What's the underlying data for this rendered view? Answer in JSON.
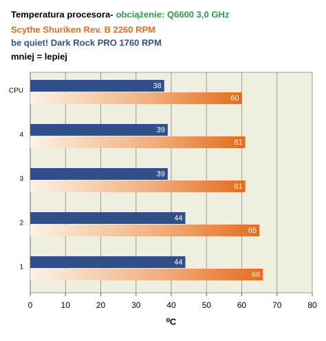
{
  "chart_data": {
    "type": "hbar",
    "title": "Temperatura procesora-",
    "subtitle": "obciążenie: Q6600 3,0 GHz",
    "note": "mniej = lepiej",
    "x_label": "⁰C",
    "categories": [
      "CPU",
      "4",
      "3",
      "2",
      "1"
    ],
    "series": [
      {
        "name": "Scythe Shuriken Rev. B 2260  RPM",
        "color": "#e46c1f",
        "values": [
          60,
          61,
          61,
          65,
          66
        ]
      },
      {
        "name": "be quiet! Dark Rock PRO 1760  RPM",
        "color": "#2f4f88",
        "values": [
          38,
          39,
          39,
          44,
          44
        ]
      }
    ],
    "xlim": [
      0,
      80
    ],
    "xticks": [
      0,
      10,
      20,
      30,
      40,
      50,
      60,
      70,
      80
    ],
    "grid": true
  }
}
